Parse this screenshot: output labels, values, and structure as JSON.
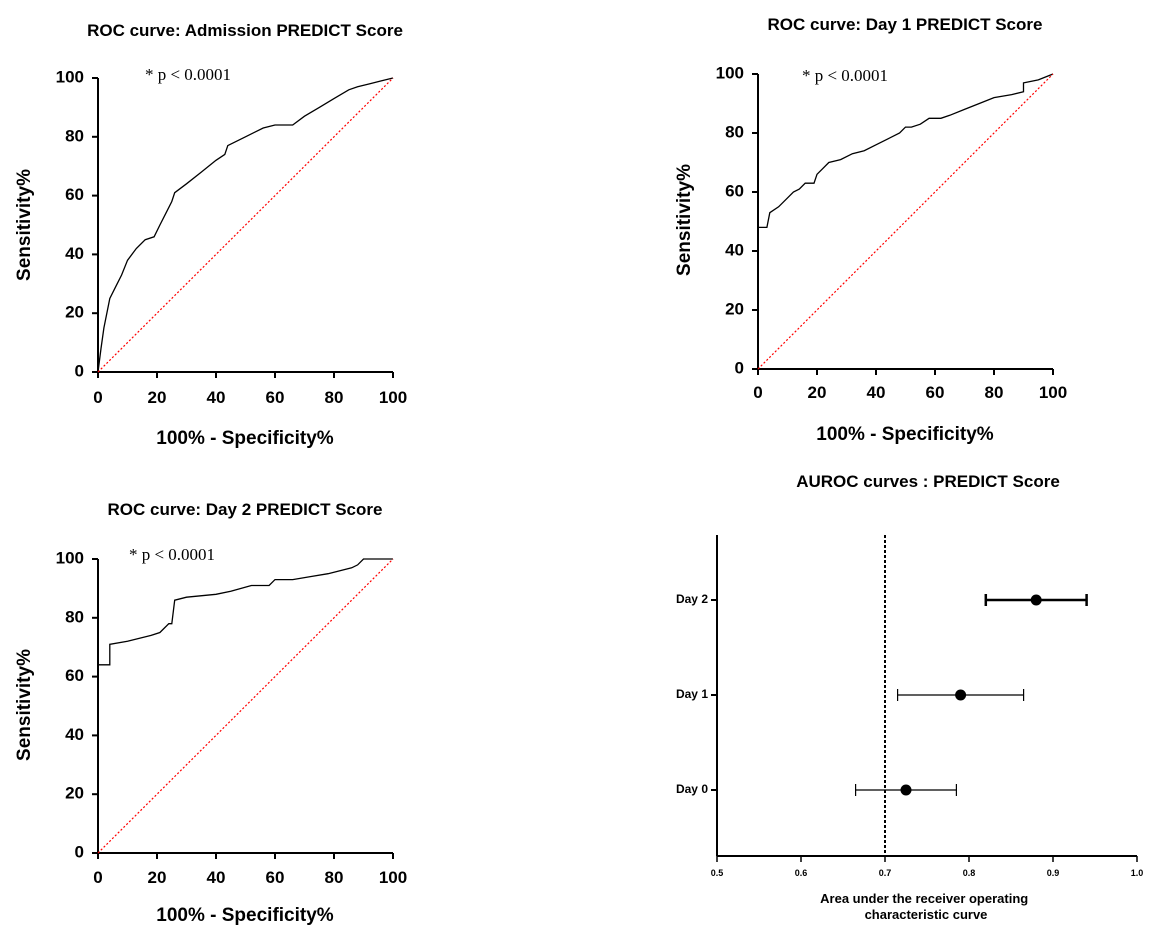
{
  "chart_data": [
    {
      "type": "line",
      "title": "ROC curve: Admission PREDICT Score",
      "xlabel": "100% - Specificity%",
      "ylabel": "Sensitivity%",
      "xlim": [
        0,
        100
      ],
      "ylim": [
        0,
        100
      ],
      "xticks": [
        "0",
        "20",
        "40",
        "60",
        "80",
        "100"
      ],
      "yticks": [
        "0",
        "20",
        "40",
        "60",
        "80",
        "100"
      ],
      "annotation": "* p < 0.0001",
      "series": [
        {
          "color": "#000000",
          "x": [
            0,
            1,
            2,
            4,
            6,
            8,
            10,
            13,
            16,
            19,
            21,
            23,
            25,
            26,
            30,
            35,
            40,
            43,
            44,
            50,
            56,
            60,
            63,
            66,
            70,
            75,
            80,
            85,
            88,
            92,
            96,
            100
          ],
          "y": [
            0,
            8,
            15,
            25,
            29,
            33,
            38,
            42,
            45,
            46,
            50,
            54,
            58,
            61,
            64,
            68,
            72,
            74,
            77,
            80,
            83,
            84,
            84,
            84,
            87,
            90,
            93,
            96,
            97,
            98,
            99,
            100
          ]
        },
        {
          "color": "#ff0000",
          "x": [
            0,
            100
          ],
          "y": [
            0,
            100
          ]
        }
      ]
    },
    {
      "type": "line",
      "title": "ROC curve: Day 1 PREDICT Score",
      "xlabel": "100% - Specificity%",
      "ylabel": "Sensitivity%",
      "xlim": [
        0,
        100
      ],
      "ylim": [
        0,
        100
      ],
      "xticks": [
        "0",
        "20",
        "40",
        "60",
        "80",
        "100"
      ],
      "yticks": [
        "0",
        "20",
        "40",
        "60",
        "80",
        "100"
      ],
      "annotation": "* p < 0.0001",
      "series": [
        {
          "color": "#000000",
          "x": [
            0,
            0,
            3,
            4,
            7,
            10,
            12,
            14,
            16,
            19,
            20,
            22,
            24,
            28,
            32,
            36,
            40,
            44,
            48,
            50,
            52,
            55,
            58,
            62,
            65,
            70,
            75,
            80,
            86,
            90,
            90,
            95,
            100
          ],
          "y": [
            0,
            48,
            48,
            53,
            55,
            58,
            60,
            61,
            63,
            63,
            66,
            68,
            70,
            71,
            73,
            74,
            76,
            78,
            80,
            82,
            82,
            83,
            85,
            85,
            86,
            88,
            90,
            92,
            93,
            94,
            97,
            98,
            100
          ]
        },
        {
          "color": "#ff0000",
          "x": [
            0,
            100
          ],
          "y": [
            0,
            100
          ]
        }
      ]
    },
    {
      "type": "line",
      "title": "ROC curve: Day 2 PREDICT Score",
      "xlabel": "100% - Specificity%",
      "ylabel": "Sensitivity%",
      "xlim": [
        0,
        100
      ],
      "ylim": [
        0,
        100
      ],
      "xticks": [
        "0",
        "20",
        "40",
        "60",
        "80",
        "100"
      ],
      "yticks": [
        "0",
        "20",
        "40",
        "60",
        "80",
        "100"
      ],
      "annotation": "* p < 0.0001",
      "series": [
        {
          "color": "#000000",
          "x": [
            0,
            0,
            4,
            4,
            10,
            18,
            21,
            24,
            25,
            26,
            30,
            40,
            45,
            52,
            58,
            60,
            66,
            72,
            78,
            86,
            88,
            90,
            96,
            100
          ],
          "y": [
            0,
            64,
            64,
            71,
            72,
            74,
            75,
            78,
            78,
            86,
            87,
            88,
            89,
            91,
            91,
            93,
            93,
            94,
            95,
            97,
            98,
            100,
            100,
            100
          ]
        },
        {
          "color": "#ff0000",
          "x": [
            0,
            100
          ],
          "y": [
            0,
            100
          ]
        }
      ]
    },
    {
      "type": "scatter",
      "title": "AUROC curves : PREDICT Score",
      "xlabel": "Area under the receiver operating characteristic curve",
      "ylabel": "",
      "xlim": [
        0.5,
        1.0
      ],
      "xticks": [
        "0.5",
        "0.6",
        "0.7",
        "0.8",
        "0.9",
        "1.0"
      ],
      "categories": [
        "Day 2",
        "Day 1",
        "Day 0"
      ],
      "values": [
        0.88,
        0.79,
        0.725
      ],
      "ci_low": [
        0.82,
        0.715,
        0.665
      ],
      "ci_high": [
        0.94,
        0.865,
        0.785
      ],
      "reference_line": 0.7
    }
  ]
}
